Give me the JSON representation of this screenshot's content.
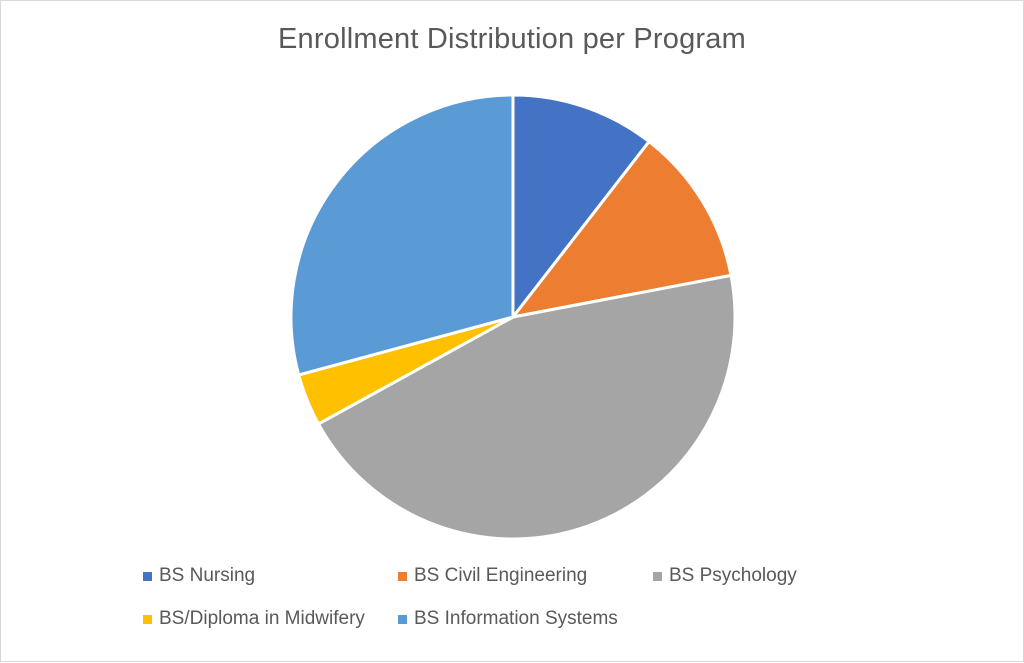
{
  "chart_data": {
    "type": "pie",
    "title": "Enrollment Distribution per Program",
    "categories": [
      "BS Nursing",
      "BS Civil Engineering",
      "BS Psychology",
      "BS/Diploma in Midwifery",
      "BS Information Systems"
    ],
    "values": [
      10.5,
      11.5,
      45.0,
      3.8,
      29.2
    ],
    "colors": [
      "#4472c4",
      "#ed7d31",
      "#a5a5a5",
      "#ffc000",
      "#5b9bd5"
    ],
    "legend_position": "bottom",
    "start_angle": "12 o'clock",
    "direction": "clockwise"
  }
}
